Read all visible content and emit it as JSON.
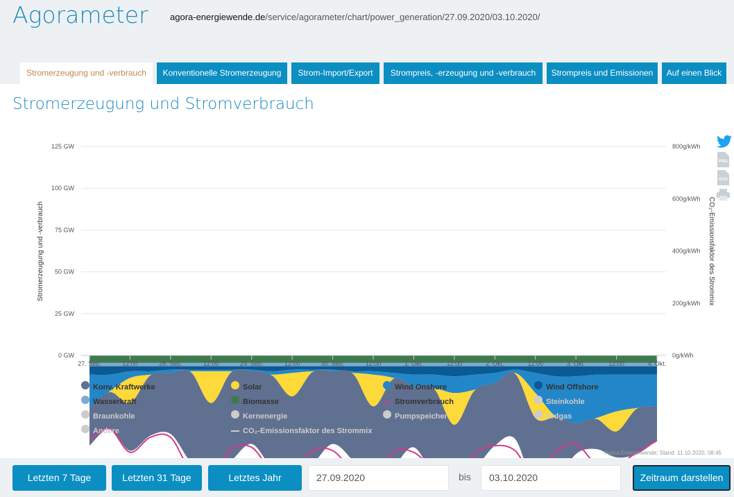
{
  "header": {
    "logo": "Agorameter",
    "url_domain": "agora-energiewende.de",
    "url_path": "/service/agorameter/chart/power_generation/27.09.2020/03.10.2020/"
  },
  "tabs": [
    {
      "label": "Stromerzeugung und -verbrauch",
      "active": true
    },
    {
      "label": "Konventionelle Stromerzeugung"
    },
    {
      "label": "Strom-Import/Export"
    },
    {
      "label": "Strompreis, -erzeugung und -verbrauch"
    },
    {
      "label": "Strompreis und Emissionen"
    },
    {
      "label": "Auf einen Blick"
    }
  ],
  "page_title": "Stromerzeugung und Stromverbrauch",
  "icons": [
    "twitter-icon",
    "png-export-icon",
    "svg-export-icon",
    "print-icon"
  ],
  "chart_data": {
    "type": "area",
    "stacked": true,
    "ylabel": "Stromerzeugung und -verbrauch",
    "ylabel_right": "CO₂-Emissionsfaktor des Strommix",
    "ylim": [
      0,
      125
    ],
    "ylim_right": [
      0,
      800
    ],
    "yticks": [
      "0 GW",
      "25 GW",
      "50 GW",
      "75 GW",
      "100 GW",
      "125 GW"
    ],
    "yticks_right": [
      "0g/kWh",
      "200g/kWh",
      "400g/kWh",
      "600g/kWh",
      "800g/kWh"
    ],
    "xticks": [
      "27. Sep.",
      "12:00",
      "28. Sep.",
      "12:00",
      "29. Sep.",
      "12:00",
      "30. Sep.",
      "12:00",
      "1. Okt.",
      "12:00",
      "2. Okt.",
      "12:00",
      "3. Okt.",
      "12:00",
      "4. Okt."
    ],
    "x_range": [
      "27.09.2020 00:00",
      "04.10.2020 00:00"
    ],
    "x_step_hours": 6,
    "grid": true,
    "series": [
      {
        "name": "Biomasse",
        "color": "#3f7a4f",
        "values": [
          4.5,
          4.5,
          4.5,
          4.5,
          4.5,
          4.5,
          4.5,
          4.5,
          4.5,
          4.5,
          4.5,
          4.5,
          4.5,
          4.5,
          4.5,
          4.5,
          4.5,
          4.5,
          4.5,
          4.5,
          4.5,
          4.5,
          4.5,
          4.5,
          4.5,
          4.5,
          4.5,
          4.5,
          4.5
        ]
      },
      {
        "name": "Wasserkraft",
        "color": "#7eaad1",
        "values": [
          2,
          2,
          2,
          2,
          2,
          2,
          2,
          2,
          2,
          2,
          2,
          2,
          2,
          2,
          2,
          2,
          2,
          2,
          2,
          2,
          2,
          2,
          2,
          2,
          2,
          2,
          2,
          2,
          2
        ]
      },
      {
        "name": "Wind Offshore",
        "color": "#0a5a94",
        "values": [
          5,
          5,
          3,
          3,
          2,
          2,
          2,
          2,
          2,
          3,
          2,
          2,
          2,
          3,
          3,
          4,
          5,
          5,
          6,
          5,
          4,
          2,
          4,
          6,
          6,
          5,
          5,
          5,
          5
        ]
      },
      {
        "name": "Wind Onshore",
        "color": "#2386c8",
        "values": [
          20,
          10,
          4,
          2,
          2,
          1,
          1,
          1,
          1,
          2,
          2,
          1,
          1,
          1,
          2,
          3,
          7,
          8,
          10,
          9,
          6,
          2,
          12,
          24,
          28,
          26,
          22,
          20,
          19
        ]
      },
      {
        "name": "Solar",
        "color": "#fdd93a",
        "values": [
          0,
          0.5,
          15,
          0.5,
          0,
          0.5,
          19,
          0.5,
          0,
          0.5,
          14,
          0.5,
          0,
          0.5,
          19,
          0.5,
          0,
          0.5,
          19,
          0.5,
          0,
          0.5,
          15,
          0.5,
          0,
          0.5,
          12,
          0.5,
          0
        ]
      },
      {
        "name": "Konv. Kraftwerke",
        "color": "#607090",
        "values": [
          22.5,
          22,
          28.5,
          36,
          36.5,
          54,
          45.5,
          53,
          43.5,
          55,
          47.5,
          55,
          43.5,
          52,
          48.5,
          53,
          36.5,
          53,
          44.5,
          48,
          37.5,
          39,
          42.5,
          39,
          18.5,
          18,
          15.5,
          27,
          20.5
        ]
      }
    ],
    "line_series": {
      "name": "Stromverbrauch",
      "color": "#d6398a",
      "values": [
        50,
        44,
        58,
        49,
        49,
        69,
        72,
        56,
        55,
        69,
        72,
        57,
        57,
        69,
        74,
        58,
        58,
        69,
        78,
        59,
        54,
        57,
        74,
        58,
        53,
        65,
        66,
        58,
        51
      ]
    },
    "legend": [
      {
        "name": "Konv. Kraftwerke",
        "color": "#607090",
        "active": true
      },
      {
        "name": "Solar",
        "color": "#fdd93a",
        "active": true
      },
      {
        "name": "Wind Onshore",
        "color": "#2386c8",
        "active": true
      },
      {
        "name": "Wind Offshore",
        "color": "#0a5a94",
        "active": true
      },
      {
        "name": "Wasserkraft",
        "color": "#7eaad1",
        "active": true
      },
      {
        "name": "Biomasse",
        "color": "#3f7a4f",
        "active": true
      },
      {
        "name": "Stromverbrauch",
        "color": "#d6398a",
        "active": true,
        "line": true
      },
      {
        "name": "Steinkohle",
        "active": false
      },
      {
        "name": "Braunkohle",
        "active": false
      },
      {
        "name": "Kernenergie",
        "active": false
      },
      {
        "name": "Pumpspeicher",
        "active": false
      },
      {
        "name": "Erdgas",
        "active": false
      },
      {
        "name": "Andere",
        "active": false
      },
      {
        "name": "CO₂-Emissionsfaktor des Strommix",
        "active": false,
        "line": true
      }
    ],
    "credit": "Agora Energiewende; Stand: 11.10.2020, 08:45"
  },
  "footer": {
    "btn_7": "Letzten 7 Tage",
    "btn_31": "Letzten 31 Tage",
    "btn_year": "Letztes Jahr",
    "from": "27.09.2020",
    "bis": "bis",
    "to": "03.10.2020",
    "submit": "Zeitraum darstellen"
  }
}
